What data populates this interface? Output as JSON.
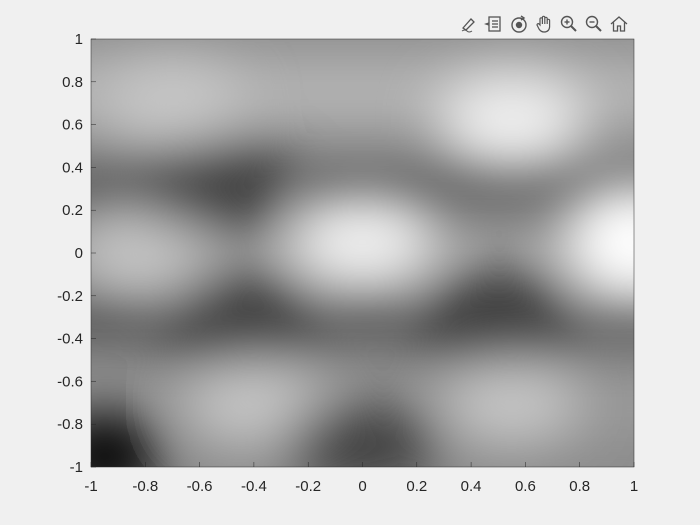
{
  "toolbar": {
    "buttons": [
      {
        "icon": "brush-icon"
      },
      {
        "icon": "data-tips-icon"
      },
      {
        "icon": "rotate-3d-icon"
      },
      {
        "icon": "pan-hand-icon"
      },
      {
        "icon": "zoom-in-icon"
      },
      {
        "icon": "zoom-out-icon"
      },
      {
        "icon": "home-icon"
      }
    ]
  },
  "chart_data": {
    "type": "heatmap",
    "colormap": "gray",
    "title": "",
    "xlabel": "",
    "ylabel": "",
    "xlim": [
      -1,
      1
    ],
    "ylim": [
      -1,
      1
    ],
    "xticks": [
      "-1",
      "-0.8",
      "-0.6",
      "-0.4",
      "-0.2",
      "0",
      "0.2",
      "0.4",
      "0.6",
      "0.8",
      "1"
    ],
    "yticks": [
      "1",
      "0.8",
      "0.6",
      "0.4",
      "0.2",
      "0",
      "-0.2",
      "-0.4",
      "-0.6",
      "-0.8",
      "-1"
    ],
    "grid": false,
    "colors": {
      "background": "#f0f0f0",
      "axis": "#262626"
    },
    "features": [
      {
        "x": 0.55,
        "y": 0.62,
        "value": "bright"
      },
      {
        "x": 0.0,
        "y": 0.05,
        "value": "bright"
      },
      {
        "x": 1.0,
        "y": 0.05,
        "value": "brightest"
      },
      {
        "x": -0.7,
        "y": 0.7,
        "value": "light"
      },
      {
        "x": -0.8,
        "y": 0.0,
        "value": "light"
      },
      {
        "x": 0.55,
        "y": -0.7,
        "value": "light"
      },
      {
        "x": -0.4,
        "y": -0.7,
        "value": "light"
      },
      {
        "x": -0.55,
        "y": 0.3,
        "value": "dark"
      },
      {
        "x": -0.45,
        "y": -0.3,
        "value": "dark"
      },
      {
        "x": 0.5,
        "y": -0.3,
        "value": "dark"
      },
      {
        "x": 0.0,
        "y": -0.9,
        "value": "dark"
      },
      {
        "x": -0.95,
        "y": -0.95,
        "value": "darkest"
      }
    ]
  }
}
